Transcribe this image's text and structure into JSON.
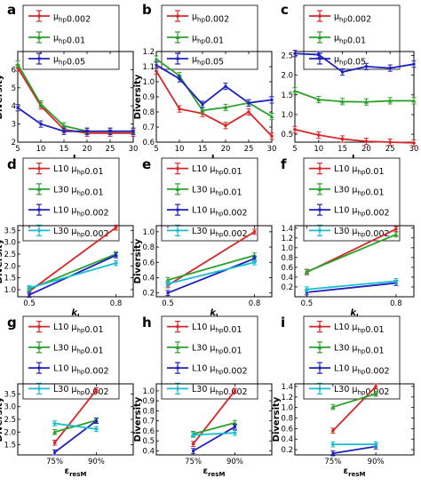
{
  "chart_data": [
    {
      "id": "a",
      "type": "line",
      "title": "",
      "xlabel": "L",
      "ylabel": "Diversity",
      "x": [
        5,
        10,
        15,
        20,
        25,
        30
      ],
      "xlim": [
        5,
        30
      ],
      "ylim": [
        2,
        7
      ],
      "xticks": [
        "5",
        "10",
        "15",
        "20",
        "25",
        "30"
      ],
      "yticks": [
        "2",
        "3",
        "4",
        "5",
        "6"
      ],
      "series": [
        {
          "name": "μhp0.002",
          "color": "#d62728",
          "values": [
            6.1,
            4.0,
            2.7,
            2.5,
            2.5,
            2.5
          ]
        },
        {
          "name": "μhp0.01",
          "color": "#2ca02c",
          "values": [
            6.3,
            4.1,
            2.9,
            2.6,
            2.6,
            2.6
          ]
        },
        {
          "name": "μhp0.05",
          "color": "#1f1fbf",
          "values": [
            3.9,
            3.0,
            2.6,
            2.6,
            2.6,
            2.6
          ]
        }
      ]
    },
    {
      "id": "b",
      "type": "line",
      "title": "",
      "xlabel": "L",
      "ylabel": "Diversity",
      "x": [
        5,
        10,
        15,
        20,
        25,
        30
      ],
      "xlim": [
        5,
        30
      ],
      "ylim": [
        0.6,
        1.2
      ],
      "xticks": [
        "5",
        "10",
        "15",
        "20",
        "25",
        "30"
      ],
      "yticks": [
        "0.6",
        "0.7",
        "0.8",
        "0.9",
        "1.0",
        "1.1",
        "1.2"
      ],
      "series": [
        {
          "name": "μhp0.002",
          "color": "#d62728",
          "values": [
            1.07,
            0.82,
            0.79,
            0.71,
            0.8,
            0.64
          ]
        },
        {
          "name": "μhp0.01",
          "color": "#2ca02c",
          "values": [
            1.15,
            1.04,
            0.81,
            0.83,
            0.86,
            0.77
          ]
        },
        {
          "name": "μhp0.05",
          "color": "#1f1fbf",
          "values": [
            1.11,
            1.02,
            0.85,
            0.97,
            0.86,
            0.88
          ]
        }
      ]
    },
    {
      "id": "c",
      "type": "line",
      "title": "",
      "xlabel": "L",
      "ylabel": "",
      "x": [
        5,
        10,
        15,
        20,
        25,
        30
      ],
      "xlim": [
        5,
        30
      ],
      "ylim": [
        0.3,
        2.6
      ],
      "xticks": [
        "5",
        "10",
        "15",
        "20",
        "25",
        "30"
      ],
      "yticks": [
        "0.5",
        "1.0",
        "1.5",
        "2.0",
        "2.5"
      ],
      "series": [
        {
          "name": "μhp0.002",
          "color": "#d62728",
          "values": [
            0.62,
            0.48,
            0.38,
            0.32,
            0.3,
            0.28
          ]
        },
        {
          "name": "μhp0.01",
          "color": "#2ca02c",
          "values": [
            1.6,
            1.38,
            1.33,
            1.32,
            1.35,
            1.35
          ]
        },
        {
          "name": "μhp0.05",
          "color": "#1f1fbf",
          "values": [
            2.55,
            2.52,
            2.08,
            2.22,
            2.18,
            2.28
          ]
        }
      ]
    },
    {
      "id": "d",
      "type": "line",
      "title": "",
      "xlabel": "kI",
      "ylabel": "Diversity",
      "x": [
        0.5,
        0.8
      ],
      "xlim": [
        0.46,
        0.86
      ],
      "ylim": [
        0.7,
        3.7
      ],
      "xticks": [
        "0.5",
        "0.8"
      ],
      "yticks": [
        "1.0",
        "1.5",
        "2.0",
        "2.5",
        "3.0",
        "3.5"
      ],
      "series": [
        {
          "name": "L10 μhp0.01",
          "color": "#d62728",
          "values": [
            0.93,
            3.62
          ]
        },
        {
          "name": "L30 μhp0.01",
          "color": "#2ca02c",
          "values": [
            1.02,
            2.5
          ]
        },
        {
          "name": "L10 μhp0.002",
          "color": "#1f1fbf",
          "values": [
            0.78,
            2.45
          ]
        },
        {
          "name": "L30 μhp0.002",
          "color": "#17becf",
          "values": [
            1.07,
            2.12
          ]
        }
      ]
    },
    {
      "id": "e",
      "type": "line",
      "title": "",
      "xlabel": "kI",
      "ylabel": "Diversity",
      "x": [
        0.5,
        0.8
      ],
      "xlim": [
        0.46,
        0.86
      ],
      "ylim": [
        0.15,
        1.08
      ],
      "xticks": [
        "0.5",
        "0.8"
      ],
      "yticks": [
        "0.2",
        "0.4",
        "0.6",
        "0.8",
        "1.0"
      ],
      "series": [
        {
          "name": "L10 μhp0.01",
          "color": "#d62728",
          "values": [
            0.3,
            1.0
          ]
        },
        {
          "name": "L30 μhp0.01",
          "color": "#2ca02c",
          "values": [
            0.37,
            0.69
          ]
        },
        {
          "name": "L10 μhp0.002",
          "color": "#1f1fbf",
          "values": [
            0.2,
            0.65
          ]
        },
        {
          "name": "L30 μhp0.002",
          "color": "#17becf",
          "values": [
            0.32,
            0.6
          ]
        }
      ]
    },
    {
      "id": "f",
      "type": "line",
      "title": "",
      "xlabel": "kI",
      "ylabel": "",
      "x": [
        0.5,
        0.8
      ],
      "xlim": [
        0.46,
        0.86
      ],
      "ylim": [
        0.0,
        1.45
      ],
      "xticks": [
        "0.5",
        "0.8"
      ],
      "yticks": [
        "0.2",
        "0.4",
        "0.6",
        "0.8",
        "1.0",
        "1.2",
        "1.4"
      ],
      "series": [
        {
          "name": "L10 μhp0.01",
          "color": "#d62728",
          "values": [
            0.5,
            1.38
          ]
        },
        {
          "name": "L30 μhp0.01",
          "color": "#2ca02c",
          "values": [
            0.51,
            1.27
          ]
        },
        {
          "name": "L10 μhp0.002",
          "color": "#1f1fbf",
          "values": [
            0.09,
            0.28
          ]
        },
        {
          "name": "L30 μhp0.002",
          "color": "#17becf",
          "values": [
            0.15,
            0.32
          ]
        }
      ]
    },
    {
      "id": "g",
      "type": "line",
      "title": "",
      "xlabel": "εresM",
      "ylabel": "Diversity",
      "x": [
        "75%",
        "90%"
      ],
      "xlim": [
        0,
        1
      ],
      "ylim": [
        1.1,
        3.9
      ],
      "xticks": [
        "75%",
        "90%"
      ],
      "yticks": [
        "1.5",
        "2.0",
        "2.5",
        "3.0",
        "3.5"
      ],
      "series": [
        {
          "name": "L10 μhp0.01",
          "color": "#d62728",
          "values": [
            1.58,
            3.65
          ]
        },
        {
          "name": "L30 μhp0.01",
          "color": "#2ca02c",
          "values": [
            2.0,
            2.46
          ]
        },
        {
          "name": "L10 μhp0.002",
          "color": "#1f1fbf",
          "values": [
            1.2,
            2.44
          ]
        },
        {
          "name": "L30 μhp0.002",
          "color": "#17becf",
          "values": [
            2.34,
            2.12
          ]
        }
      ]
    },
    {
      "id": "h",
      "type": "line",
      "title": "",
      "xlabel": "εresM",
      "ylabel": "Diversity",
      "x": [
        "75%",
        "90%"
      ],
      "xlim": [
        0,
        1
      ],
      "ylim": [
        0.36,
        1.07
      ],
      "xticks": [
        "75%",
        "90%"
      ],
      "yticks": [
        "0.4",
        "0.5",
        "0.6",
        "0.7",
        "0.8",
        "0.9",
        "1.0"
      ],
      "series": [
        {
          "name": "L10 μhp0.01",
          "color": "#d62728",
          "values": [
            0.47,
            1.0
          ]
        },
        {
          "name": "L30 μhp0.01",
          "color": "#2ca02c",
          "values": [
            0.57,
            0.68
          ]
        },
        {
          "name": "L10 μhp0.002",
          "color": "#1f1fbf",
          "values": [
            0.4,
            0.64
          ]
        },
        {
          "name": "L30 μhp0.002",
          "color": "#17becf",
          "values": [
            0.56,
            0.58
          ]
        }
      ]
    },
    {
      "id": "i",
      "type": "line",
      "title": "",
      "xlabel": "εresM",
      "ylabel": "Diversity",
      "x": [
        "75%",
        "90%"
      ],
      "xlim": [
        0,
        1
      ],
      "ylim": [
        0.1,
        1.45
      ],
      "xticks": [
        "75%",
        "90%"
      ],
      "yticks": [
        "0.2",
        "0.4",
        "0.6",
        "0.8",
        "1.0",
        "1.2",
        "1.4"
      ],
      "series": [
        {
          "name": "L10 μhp0.01",
          "color": "#d62728",
          "values": [
            0.56,
            1.4
          ]
        },
        {
          "name": "L30 μhp0.01",
          "color": "#2ca02c",
          "values": [
            1.01,
            1.26
          ]
        },
        {
          "name": "L10 μhp0.002",
          "color": "#1f1fbf",
          "values": [
            0.13,
            0.26
          ]
        },
        {
          "name": "L30 μhp0.002",
          "color": "#17becf",
          "values": [
            0.3,
            0.3
          ]
        }
      ]
    }
  ]
}
